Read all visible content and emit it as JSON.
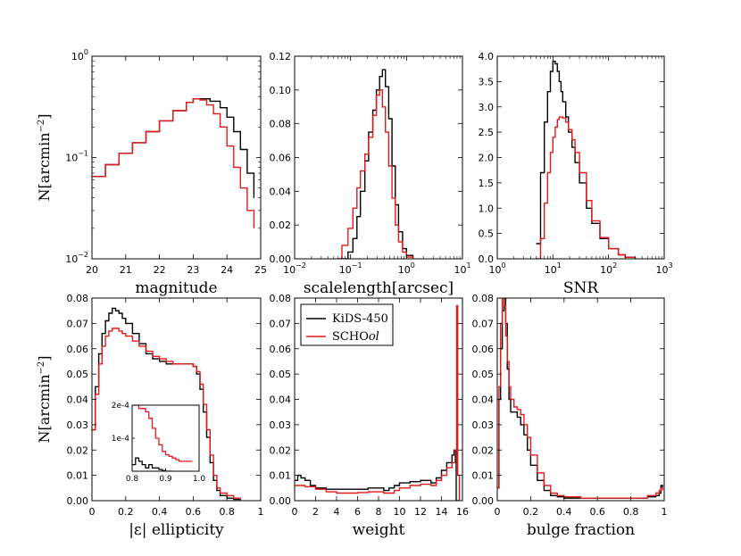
{
  "colors": {
    "kids": "#000000",
    "school": "#e31a1c"
  },
  "legend": {
    "items": [
      {
        "name": "KiDS-450",
        "color": "#000000"
      },
      {
        "name": "SCHOol",
        "color": "#e31a1c"
      }
    ]
  },
  "chart_data": [
    {
      "id": "magnitude",
      "type": "line",
      "step": true,
      "xlabel": "magnitude",
      "ylabel": "N[arcmin^-2]",
      "xlim": [
        20,
        25
      ],
      "ylim": [
        0.01,
        1
      ],
      "yscale": "log",
      "xticks": [
        20,
        21,
        22,
        23,
        24,
        25
      ],
      "yticks": [
        {
          "v": 0.01,
          "t": "10^-2"
        },
        {
          "v": 0.1,
          "t": "10^-1"
        },
        {
          "v": 1,
          "t": "10^0"
        }
      ],
      "series": [
        {
          "name": "KiDS-450",
          "x": [
            20.0,
            20.4,
            20.8,
            21.2,
            21.6,
            22.0,
            22.4,
            22.8,
            23.0,
            23.2,
            23.5,
            23.8,
            24.0,
            24.2,
            24.4,
            24.6,
            24.8
          ],
          "y": [
            0.065,
            0.085,
            0.11,
            0.14,
            0.18,
            0.23,
            0.29,
            0.35,
            0.38,
            0.38,
            0.36,
            0.31,
            0.25,
            0.18,
            0.12,
            0.07,
            0.04
          ]
        },
        {
          "name": "SCHOol",
          "x": [
            20.0,
            20.4,
            20.8,
            21.2,
            21.6,
            22.0,
            22.4,
            22.8,
            23.0,
            23.2,
            23.4,
            23.6,
            23.8,
            24.0,
            24.2,
            24.4,
            24.6,
            24.8
          ],
          "y": [
            0.065,
            0.085,
            0.11,
            0.14,
            0.18,
            0.23,
            0.29,
            0.35,
            0.38,
            0.37,
            0.33,
            0.27,
            0.2,
            0.13,
            0.08,
            0.05,
            0.03,
            0.02
          ]
        }
      ]
    },
    {
      "id": "scalelength",
      "type": "line",
      "step": true,
      "xlabel": "scalelength[arcsec]",
      "ylabel": "",
      "xlim": [
        0.01,
        10
      ],
      "ylim": [
        0,
        0.12
      ],
      "xscale": "log",
      "xticks": [
        {
          "v": 0.01,
          "t": "10^-2"
        },
        {
          "v": 0.1,
          "t": "10^-1"
        },
        {
          "v": 1,
          "t": "10^0"
        },
        {
          "v": 10,
          "t": "10^1"
        }
      ],
      "yticks": [
        0,
        0.02,
        0.04,
        0.06,
        0.08,
        0.1,
        0.12
      ],
      "series": [
        {
          "name": "KiDS-450",
          "x": [
            0.07,
            0.09,
            0.11,
            0.13,
            0.15,
            0.18,
            0.21,
            0.25,
            0.29,
            0.33,
            0.37,
            0.42,
            0.48,
            0.55,
            0.63,
            0.72,
            0.85,
            1.0,
            1.3
          ],
          "y": [
            0,
            0.004,
            0.012,
            0.025,
            0.04,
            0.058,
            0.075,
            0.088,
            0.1,
            0.108,
            0.112,
            0.102,
            0.083,
            0.055,
            0.032,
            0.016,
            0.006,
            0.002,
            0
          ]
        },
        {
          "name": "SCHOol",
          "x": [
            0.06,
            0.07,
            0.09,
            0.11,
            0.13,
            0.15,
            0.18,
            0.21,
            0.25,
            0.29,
            0.33,
            0.37,
            0.42,
            0.48,
            0.55,
            0.63,
            0.72,
            0.85,
            1.0,
            1.3
          ],
          "y": [
            0,
            0.008,
            0.018,
            0.03,
            0.042,
            0.052,
            0.062,
            0.072,
            0.085,
            0.097,
            0.1,
            0.09,
            0.075,
            0.055,
            0.036,
            0.02,
            0.01,
            0.004,
            0.001,
            0
          ]
        }
      ]
    },
    {
      "id": "snr",
      "type": "line",
      "step": true,
      "xlabel": "SNR",
      "ylabel": "",
      "xlim": [
        1,
        1000
      ],
      "ylim": [
        0,
        4
      ],
      "xscale": "log",
      "xticks": [
        {
          "v": 1,
          "t": "10^0"
        },
        {
          "v": 10,
          "t": "10^1"
        },
        {
          "v": 100,
          "t": "10^2"
        },
        {
          "v": 1000,
          "t": "10^3"
        }
      ],
      "yticks": [
        0,
        0.5,
        1,
        1.5,
        2,
        2.5,
        3,
        3.5,
        4
      ],
      "series": [
        {
          "name": "KiDS-450",
          "x": [
            5,
            6,
            7,
            8,
            9,
            10,
            11,
            12,
            13,
            14,
            15,
            17,
            19,
            22,
            25,
            30,
            40,
            50,
            70,
            100,
            150,
            200,
            300
          ],
          "y": [
            0.3,
            1.7,
            2.7,
            3.3,
            3.7,
            3.9,
            3.85,
            3.7,
            3.5,
            3.3,
            3.1,
            2.8,
            2.5,
            2.2,
            1.9,
            1.5,
            1.0,
            0.7,
            0.4,
            0.2,
            0.08,
            0.03,
            0
          ]
        },
        {
          "name": "SCHOol",
          "x": [
            5,
            6,
            7,
            8,
            9,
            10,
            11,
            12,
            13,
            14,
            15,
            17,
            19,
            22,
            25,
            30,
            40,
            50,
            70,
            100,
            150,
            200,
            300
          ],
          "y": [
            0,
            0.4,
            1.1,
            1.7,
            2.1,
            2.4,
            2.6,
            2.75,
            2.8,
            2.8,
            2.78,
            2.7,
            2.55,
            2.35,
            2.1,
            1.7,
            1.15,
            0.75,
            0.42,
            0.2,
            0.08,
            0.03,
            0
          ]
        }
      ]
    },
    {
      "id": "ellipticity",
      "type": "line",
      "step": true,
      "xlabel": "|ε| ellipticity",
      "ylabel": "N[arcmin^-2]",
      "xlim": [
        0,
        1
      ],
      "ylim": [
        0,
        0.08
      ],
      "xticks": [
        0,
        0.2,
        0.4,
        0.6,
        0.8,
        1.0
      ],
      "yticks": [
        0,
        0.01,
        0.02,
        0.03,
        0.04,
        0.05,
        0.06,
        0.07,
        0.08
      ],
      "series": [
        {
          "name": "KiDS-450",
          "x": [
            0.0,
            0.02,
            0.04,
            0.06,
            0.08,
            0.1,
            0.12,
            0.14,
            0.16,
            0.18,
            0.2,
            0.24,
            0.28,
            0.32,
            0.36,
            0.4,
            0.44,
            0.48,
            0.52,
            0.56,
            0.6,
            0.62,
            0.64,
            0.66,
            0.68,
            0.7,
            0.72,
            0.74,
            0.76,
            0.8,
            0.84,
            0.88
          ],
          "y": [
            0.028,
            0.045,
            0.058,
            0.066,
            0.071,
            0.074,
            0.076,
            0.075,
            0.074,
            0.072,
            0.07,
            0.066,
            0.062,
            0.058,
            0.056,
            0.055,
            0.054,
            0.054,
            0.054,
            0.054,
            0.053,
            0.05,
            0.044,
            0.035,
            0.025,
            0.015,
            0.008,
            0.004,
            0.002,
            0.001,
            0.0005,
            0
          ]
        },
        {
          "name": "SCHOol",
          "x": [
            0.0,
            0.02,
            0.04,
            0.06,
            0.08,
            0.1,
            0.12,
            0.14,
            0.16,
            0.18,
            0.2,
            0.24,
            0.28,
            0.32,
            0.36,
            0.4,
            0.44,
            0.48,
            0.52,
            0.56,
            0.6,
            0.62,
            0.64,
            0.66,
            0.68,
            0.7,
            0.72,
            0.74,
            0.76,
            0.8,
            0.84,
            0.88
          ],
          "y": [
            0.028,
            0.042,
            0.054,
            0.061,
            0.065,
            0.067,
            0.068,
            0.068,
            0.067,
            0.066,
            0.065,
            0.063,
            0.061,
            0.059,
            0.057,
            0.056,
            0.055,
            0.054,
            0.054,
            0.054,
            0.053,
            0.051,
            0.046,
            0.038,
            0.028,
            0.018,
            0.01,
            0.005,
            0.003,
            0.002,
            0.001,
            0
          ]
        }
      ],
      "inset": {
        "xlim": [
          0.8,
          1.0
        ],
        "ylim": [
          0,
          0.0002
        ],
        "xticks": [
          0.8,
          0.9,
          1.0
        ],
        "yticks": [
          {
            "v": 0.0001,
            "t": "1e-4"
          },
          {
            "v": 0.0002,
            "t": "2e-4"
          }
        ],
        "series": [
          {
            "name": "KiDS-450",
            "x": [
              0.8,
              0.81,
              0.82,
              0.83,
              0.84,
              0.85,
              0.86,
              0.87,
              0.88,
              0.89,
              0.9,
              0.91,
              0.92
            ],
            "y": [
              2e-05,
              4e-05,
              3e-05,
              2e-05,
              1e-05,
              2e-05,
              1e-05,
              1e-05,
              5e-06,
              2e-06,
              0,
              0,
              0
            ]
          },
          {
            "name": "SCHOol",
            "x": [
              0.8,
              0.82,
              0.84,
              0.85,
              0.86,
              0.87,
              0.88,
              0.89,
              0.9,
              0.91,
              0.92,
              0.93,
              0.94,
              0.96,
              0.98
            ],
            "y": [
              0.0002,
              0.00019,
              0.00018,
              0.00016,
              0.00013,
              0.0001,
              8e-05,
              6e-05,
              5e-05,
              4.5e-05,
              4e-05,
              3.5e-05,
              3e-05,
              3e-05,
              3e-05
            ]
          }
        ]
      }
    },
    {
      "id": "weight",
      "type": "line",
      "step": true,
      "xlabel": "weight",
      "ylabel": "",
      "xlim": [
        0,
        16
      ],
      "ylim": [
        0,
        0.08
      ],
      "xticks": [
        0,
        2,
        4,
        6,
        8,
        10,
        12,
        14,
        16
      ],
      "yticks": [
        0,
        0.01,
        0.02,
        0.03,
        0.04,
        0.05,
        0.06,
        0.07,
        0.08
      ],
      "series": [
        {
          "name": "KiDS-450",
          "x": [
            0,
            0.3,
            0.6,
            1,
            1.5,
            2,
            3,
            4,
            5,
            6,
            7,
            8,
            8.5,
            9,
            9.5,
            10,
            11,
            12,
            13,
            13.5,
            14,
            14.5,
            15,
            15.2,
            15.4,
            15.6
          ],
          "y": [
            0.008,
            0.01,
            0.009,
            0.008,
            0.006,
            0.005,
            0.0045,
            0.0045,
            0.0045,
            0.0045,
            0.005,
            0.005,
            0.004,
            0.005,
            0.006,
            0.007,
            0.0075,
            0.008,
            0.007,
            0.009,
            0.012,
            0.015,
            0.018,
            0.02,
            0.0,
            0
          ]
        },
        {
          "name": "SCHOol",
          "x": [
            0,
            0.5,
            1,
            2,
            3,
            4,
            5,
            6,
            7,
            8,
            8.5,
            9,
            9.5,
            10,
            11,
            12,
            13,
            13.5,
            14,
            14.5,
            15,
            15.3,
            15.45,
            15.55,
            15.7
          ],
          "y": [
            0.006,
            0.006,
            0.0055,
            0.0045,
            0.0035,
            0.003,
            0.003,
            0.0032,
            0.0035,
            0.0035,
            0.003,
            0.003,
            0.004,
            0.005,
            0.006,
            0.0065,
            0.006,
            0.008,
            0.01,
            0.013,
            0.015,
            0.02,
            0.077,
            0.01,
            0
          ]
        }
      ]
    },
    {
      "id": "bulge",
      "type": "line",
      "step": true,
      "xlabel": "bulge fraction",
      "ylabel": "",
      "xlim": [
        0,
        1
      ],
      "ylim": [
        0,
        0.08
      ],
      "xticks": [
        0,
        0.2,
        0.4,
        0.6,
        0.8,
        1.0
      ],
      "yticks": [
        0,
        0.01,
        0.02,
        0.03,
        0.04,
        0.05,
        0.06,
        0.07,
        0.08
      ],
      "series": [
        {
          "name": "KiDS-450",
          "x": [
            0.0,
            0.01,
            0.02,
            0.03,
            0.04,
            0.05,
            0.06,
            0.07,
            0.08,
            0.1,
            0.12,
            0.14,
            0.16,
            0.18,
            0.2,
            0.24,
            0.28,
            0.32,
            0.36,
            0.4,
            0.5,
            0.6,
            0.7,
            0.8,
            0.9,
            0.95,
            0.97,
            0.98,
            0.99
          ],
          "y": [
            0.005,
            0.04,
            0.06,
            0.075,
            0.08,
            0.07,
            0.052,
            0.04,
            0.035,
            0.035,
            0.033,
            0.03,
            0.026,
            0.02,
            0.014,
            0.008,
            0.004,
            0.002,
            0.0015,
            0.001,
            0.001,
            0.001,
            0.001,
            0.001,
            0.0015,
            0.002,
            0.003,
            0.006,
            0.005
          ]
        },
        {
          "name": "SCHOol",
          "x": [
            0.0,
            0.01,
            0.02,
            0.03,
            0.04,
            0.05,
            0.06,
            0.07,
            0.08,
            0.1,
            0.12,
            0.14,
            0.16,
            0.18,
            0.2,
            0.24,
            0.28,
            0.32,
            0.36,
            0.4,
            0.5,
            0.6,
            0.7,
            0.8,
            0.9,
            0.95,
            0.97,
            0.98,
            0.99
          ],
          "y": [
            0.005,
            0.045,
            0.07,
            0.08,
            0.077,
            0.065,
            0.055,
            0.045,
            0.04,
            0.037,
            0.036,
            0.034,
            0.03,
            0.025,
            0.018,
            0.011,
            0.006,
            0.003,
            0.002,
            0.0015,
            0.001,
            0.001,
            0.001,
            0.001,
            0.002,
            0.003,
            0.004,
            0.005,
            0.004
          ]
        }
      ]
    }
  ]
}
